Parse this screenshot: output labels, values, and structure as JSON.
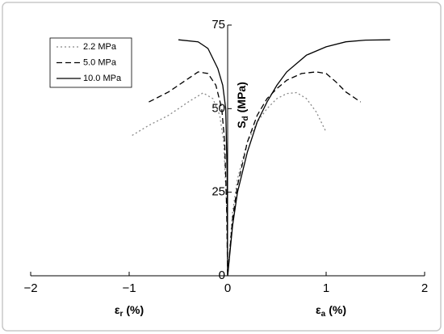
{
  "chart_data": {
    "type": "line",
    "x_label_left": {
      "main": "ε",
      "sub": "r",
      "unit": "(%)"
    },
    "x_label_right": {
      "main": "ε",
      "sub": "a",
      "unit": "(%)"
    },
    "y_label": {
      "main": "S",
      "sub": "d",
      "unit": "(MPa)"
    },
    "xlim": [
      -2,
      2
    ],
    "xticks": [
      {
        "value": -2,
        "label": "−2"
      },
      {
        "value": -1,
        "label": "−1"
      },
      0,
      1,
      2
    ],
    "ylim": [
      0,
      75
    ],
    "yticks": [
      0,
      25,
      50,
      75
    ],
    "legend": "upper left",
    "series": [
      {
        "name": "2.2 MPa",
        "color": "#888888",
        "dash": "dotted",
        "x": [
          -0.97,
          -0.8,
          -0.6,
          -0.4,
          -0.25,
          -0.15,
          -0.08,
          -0.04,
          -0.01,
          0,
          0.05,
          0.1,
          0.2,
          0.3,
          0.4,
          0.5,
          0.6,
          0.7,
          0.8,
          0.9,
          1.0
        ],
        "values": [
          42,
          45,
          48,
          52,
          54.7,
          53,
          48,
          40,
          20,
          0,
          19,
          29,
          40,
          46,
          50,
          53,
          54.5,
          54.8,
          53,
          49,
          43
        ]
      },
      {
        "name": "5.0 MPa",
        "color": "#000000",
        "dash": "dashed",
        "x": [
          -0.8,
          -0.6,
          -0.45,
          -0.3,
          -0.2,
          -0.12,
          -0.06,
          -0.03,
          -0.01,
          0,
          0.05,
          0.1,
          0.2,
          0.3,
          0.4,
          0.5,
          0.6,
          0.75,
          0.9,
          1.0,
          1.1,
          1.2,
          1.35
        ],
        "values": [
          52,
          55,
          58,
          61,
          60.5,
          57,
          50,
          40,
          20,
          0,
          17,
          27,
          40,
          48,
          53,
          56,
          58.5,
          60.5,
          61,
          60.5,
          58,
          55,
          52
        ]
      },
      {
        "name": "10.0 MPa",
        "color": "#000000",
        "dash": "solid",
        "x": [
          -0.5,
          -0.3,
          -0.2,
          -0.1,
          -0.05,
          -0.02,
          -0.005,
          0,
          0.05,
          0.1,
          0.2,
          0.3,
          0.4,
          0.5,
          0.6,
          0.8,
          1.0,
          1.2,
          1.4,
          1.65
        ],
        "values": [
          70.6,
          70,
          68,
          62,
          57,
          50,
          30,
          0,
          15,
          25,
          37,
          46,
          52,
          57,
          61,
          66,
          68.5,
          70,
          70.5,
          70.6
        ]
      }
    ]
  }
}
